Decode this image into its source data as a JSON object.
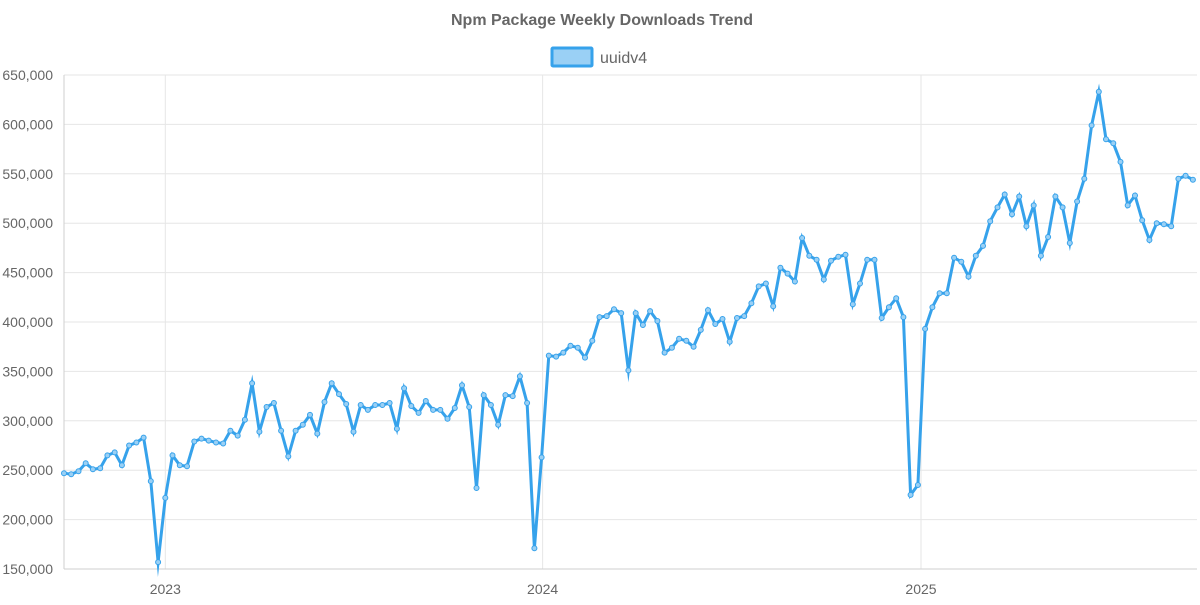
{
  "chart_data": {
    "type": "line",
    "title": "Npm Package Weekly Downloads Trend",
    "xlabel": "",
    "ylabel": "",
    "x_range": [
      "2022-09-25",
      "2025-09-25"
    ],
    "x_ticks": [
      {
        "label": "2023",
        "date": "2023-01-01"
      },
      {
        "label": "2024",
        "date": "2024-01-01"
      },
      {
        "label": "2025",
        "date": "2025-01-01"
      }
    ],
    "ylim": [
      150000,
      650000
    ],
    "y_ticks": [
      {
        "value": 150000,
        "label": "150,000"
      },
      {
        "value": 200000,
        "label": "200,000"
      },
      {
        "value": 250000,
        "label": "250,000"
      },
      {
        "value": 300000,
        "label": "300,000"
      },
      {
        "value": 350000,
        "label": "350,000"
      },
      {
        "value": 400000,
        "label": "400,000"
      },
      {
        "value": 450000,
        "label": "450,000"
      },
      {
        "value": 500000,
        "label": "500,000"
      },
      {
        "value": 550000,
        "label": "550,000"
      },
      {
        "value": 600000,
        "label": "600,000"
      },
      {
        "value": 650000,
        "label": "650,000"
      }
    ],
    "grid": true,
    "legend_position": "top-center",
    "colors": {
      "line": "#36a2eb",
      "fill": "#9ad0f5",
      "grid": "#e6e6e6",
      "text": "#666666"
    },
    "series": [
      {
        "name": "uuidv4",
        "points": [
          [
            "2022-09-25",
            247000
          ],
          [
            "2022-10-02",
            246000
          ],
          [
            "2022-10-09",
            249000
          ],
          [
            "2022-10-16",
            257000
          ],
          [
            "2022-10-23",
            251000
          ],
          [
            "2022-10-30",
            252000
          ],
          [
            "2022-11-06",
            265000
          ],
          [
            "2022-11-13",
            268000
          ],
          [
            "2022-11-20",
            255000
          ],
          [
            "2022-11-27",
            275000
          ],
          [
            "2022-12-04",
            278000
          ],
          [
            "2022-12-11",
            283000
          ],
          [
            "2022-12-18",
            239000
          ],
          [
            "2022-12-25",
            157000
          ],
          [
            "2023-01-01",
            222000
          ],
          [
            "2023-01-08",
            265000
          ],
          [
            "2023-01-15",
            255000
          ],
          [
            "2023-01-22",
            254000
          ],
          [
            "2023-01-29",
            279000
          ],
          [
            "2023-02-05",
            282000
          ],
          [
            "2023-02-12",
            280000
          ],
          [
            "2023-02-19",
            278000
          ],
          [
            "2023-02-26",
            277000
          ],
          [
            "2023-03-05",
            290000
          ],
          [
            "2023-03-12",
            285000
          ],
          [
            "2023-03-19",
            301000
          ],
          [
            "2023-03-26",
            338000
          ],
          [
            "2023-04-02",
            289000
          ],
          [
            "2023-04-09",
            314000
          ],
          [
            "2023-04-16",
            318000
          ],
          [
            "2023-04-23",
            290000
          ],
          [
            "2023-04-30",
            264000
          ],
          [
            "2023-05-07",
            290000
          ],
          [
            "2023-05-14",
            296000
          ],
          [
            "2023-05-21",
            306000
          ],
          [
            "2023-05-28",
            287000
          ],
          [
            "2023-06-04",
            319000
          ],
          [
            "2023-06-11",
            338000
          ],
          [
            "2023-06-18",
            327000
          ],
          [
            "2023-06-25",
            317000
          ],
          [
            "2023-07-02",
            289000
          ],
          [
            "2023-07-09",
            316000
          ],
          [
            "2023-07-16",
            311000
          ],
          [
            "2023-07-23",
            316000
          ],
          [
            "2023-07-30",
            316000
          ],
          [
            "2023-08-06",
            318000
          ],
          [
            "2023-08-13",
            292000
          ],
          [
            "2023-08-20",
            333000
          ],
          [
            "2023-08-27",
            315000
          ],
          [
            "2023-09-03",
            308000
          ],
          [
            "2023-09-10",
            320000
          ],
          [
            "2023-09-17",
            311000
          ],
          [
            "2023-09-24",
            311000
          ],
          [
            "2023-10-01",
            302000
          ],
          [
            "2023-10-08",
            313000
          ],
          [
            "2023-10-15",
            336000
          ],
          [
            "2023-10-22",
            314000
          ],
          [
            "2023-10-29",
            232000
          ],
          [
            "2023-11-05",
            326000
          ],
          [
            "2023-11-12",
            316000
          ],
          [
            "2023-11-19",
            296000
          ],
          [
            "2023-11-26",
            326000
          ],
          [
            "2023-12-03",
            325000
          ],
          [
            "2023-12-10",
            345000
          ],
          [
            "2023-12-17",
            318000
          ],
          [
            "2023-12-24",
            171000
          ],
          [
            "2023-12-31",
            263000
          ],
          [
            "2024-01-07",
            366000
          ],
          [
            "2024-01-14",
            365000
          ],
          [
            "2024-01-21",
            369000
          ],
          [
            "2024-01-28",
            376000
          ],
          [
            "2024-02-04",
            374000
          ],
          [
            "2024-02-11",
            364000
          ],
          [
            "2024-02-18",
            381000
          ],
          [
            "2024-02-25",
            405000
          ],
          [
            "2024-03-03",
            406000
          ],
          [
            "2024-03-10",
            413000
          ],
          [
            "2024-03-17",
            409000
          ],
          [
            "2024-03-24",
            351000
          ],
          [
            "2024-03-31",
            409000
          ],
          [
            "2024-04-07",
            397000
          ],
          [
            "2024-04-14",
            411000
          ],
          [
            "2024-04-21",
            401000
          ],
          [
            "2024-04-28",
            369000
          ],
          [
            "2024-05-05",
            374000
          ],
          [
            "2024-05-12",
            383000
          ],
          [
            "2024-05-19",
            381000
          ],
          [
            "2024-05-26",
            375000
          ],
          [
            "2024-06-02",
            392000
          ],
          [
            "2024-06-09",
            412000
          ],
          [
            "2024-06-16",
            398000
          ],
          [
            "2024-06-23",
            403000
          ],
          [
            "2024-06-30",
            380000
          ],
          [
            "2024-07-07",
            404000
          ],
          [
            "2024-07-14",
            406000
          ],
          [
            "2024-07-21",
            419000
          ],
          [
            "2024-07-28",
            436000
          ],
          [
            "2024-08-04",
            439000
          ],
          [
            "2024-08-11",
            416000
          ],
          [
            "2024-08-18",
            455000
          ],
          [
            "2024-08-25",
            449000
          ],
          [
            "2024-09-01",
            441000
          ],
          [
            "2024-09-08",
            485000
          ],
          [
            "2024-09-15",
            467000
          ],
          [
            "2024-09-22",
            463000
          ],
          [
            "2024-09-29",
            443000
          ],
          [
            "2024-10-06",
            462000
          ],
          [
            "2024-10-13",
            466000
          ],
          [
            "2024-10-20",
            468000
          ],
          [
            "2024-10-27",
            418000
          ],
          [
            "2024-11-03",
            439000
          ],
          [
            "2024-11-10",
            463000
          ],
          [
            "2024-11-17",
            463000
          ],
          [
            "2024-11-24",
            404000
          ],
          [
            "2024-12-01",
            415000
          ],
          [
            "2024-12-08",
            424000
          ],
          [
            "2024-12-15",
            405000
          ],
          [
            "2024-12-22",
            225000
          ],
          [
            "2024-12-29",
            235000
          ],
          [
            "2025-01-05",
            393000
          ],
          [
            "2025-01-12",
            415000
          ],
          [
            "2025-01-19",
            429000
          ],
          [
            "2025-01-26",
            429000
          ],
          [
            "2025-02-02",
            465000
          ],
          [
            "2025-02-09",
            461000
          ],
          [
            "2025-02-16",
            446000
          ],
          [
            "2025-02-23",
            467000
          ],
          [
            "2025-03-02",
            477000
          ],
          [
            "2025-03-09",
            502000
          ],
          [
            "2025-03-16",
            516000
          ],
          [
            "2025-03-23",
            529000
          ],
          [
            "2025-03-30",
            509000
          ],
          [
            "2025-04-06",
            527000
          ],
          [
            "2025-04-13",
            497000
          ],
          [
            "2025-04-20",
            518000
          ],
          [
            "2025-04-27",
            467000
          ],
          [
            "2025-05-04",
            486000
          ],
          [
            "2025-05-11",
            527000
          ],
          [
            "2025-05-18",
            516000
          ],
          [
            "2025-05-25",
            480000
          ],
          [
            "2025-06-01",
            522000
          ],
          [
            "2025-06-08",
            545000
          ],
          [
            "2025-06-15",
            599000
          ],
          [
            "2025-06-22",
            633000
          ],
          [
            "2025-06-29",
            585000
          ],
          [
            "2025-07-06",
            581000
          ],
          [
            "2025-07-13",
            562000
          ],
          [
            "2025-07-20",
            518000
          ],
          [
            "2025-07-27",
            528000
          ],
          [
            "2025-08-03",
            503000
          ],
          [
            "2025-08-10",
            483000
          ],
          [
            "2025-08-17",
            500000
          ],
          [
            "2025-08-24",
            499000
          ],
          [
            "2025-08-31",
            497000
          ],
          [
            "2025-09-07",
            545000
          ],
          [
            "2025-09-14",
            548000
          ],
          [
            "2025-09-21",
            544000
          ]
        ]
      }
    ]
  }
}
